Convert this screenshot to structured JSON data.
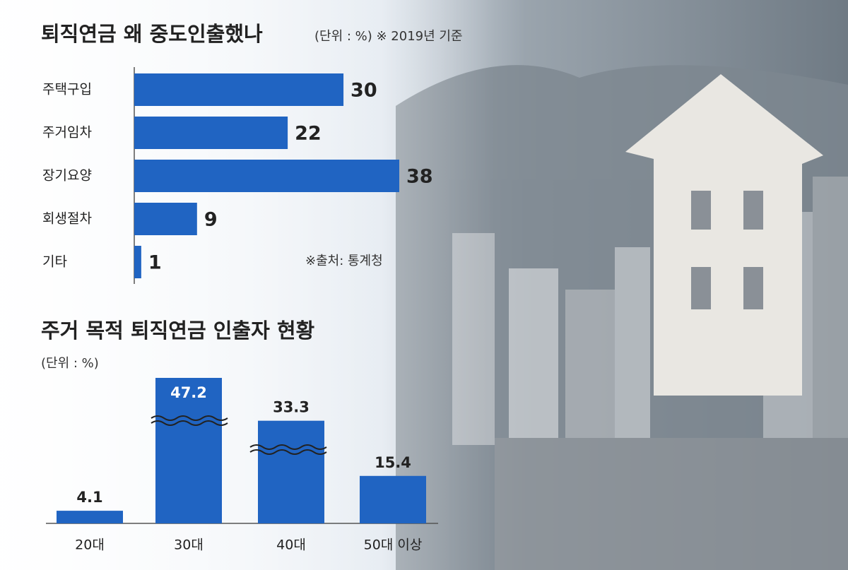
{
  "chart_data": [
    {
      "type": "hbar",
      "title": "퇴직연금 왜 중도인출했나",
      "subtitle": "(단위 : %) ※ 2019년 기준",
      "categories": [
        "주택구입",
        "주거임차",
        "장기요양",
        "회생절차",
        "기타"
      ],
      "values": [
        30,
        22,
        38,
        9,
        1
      ],
      "color": "#2064c2",
      "source": "※출처: 통계청"
    },
    {
      "type": "bar",
      "title": "주거 목적 퇴직연금 인출자 현황",
      "subtitle": "(단위 : %)",
      "categories": [
        "20대",
        "30대",
        "40대",
        "50대 이상"
      ],
      "values": [
        4.1,
        47.2,
        33.3,
        15.4
      ],
      "color": "#2064c2"
    }
  ]
}
